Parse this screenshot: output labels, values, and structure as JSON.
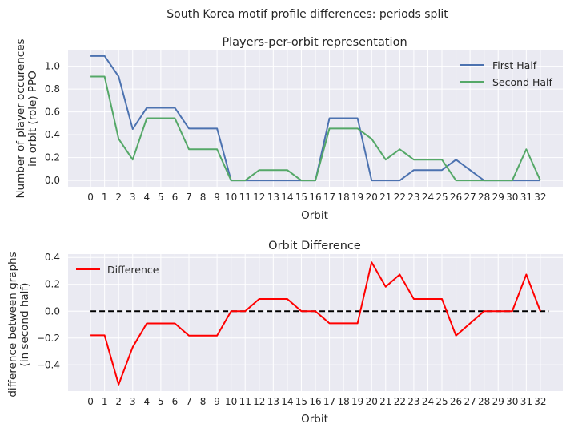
{
  "suptitle": "South Korea motif profile differences: periods split",
  "chart_data": [
    {
      "type": "line",
      "title": "Players-per-orbit representation",
      "xlabel": "Orbit",
      "ylabel_lines": [
        "Number of player occurences",
        "in orbit (role) PPO"
      ],
      "x": [
        0,
        1,
        2,
        3,
        4,
        5,
        6,
        7,
        8,
        9,
        10,
        11,
        12,
        13,
        14,
        15,
        16,
        17,
        18,
        19,
        20,
        21,
        22,
        23,
        24,
        25,
        26,
        27,
        28,
        29,
        30,
        31,
        32
      ],
      "xlim": [
        -1.6,
        33.6
      ],
      "ylim": [
        -0.055,
        1.145
      ],
      "yticks": [
        0.0,
        0.2,
        0.4,
        0.6,
        0.8,
        1.0
      ],
      "ytick_labels": [
        "0.0",
        "0.2",
        "0.4",
        "0.6",
        "0.8",
        "1.0"
      ],
      "legend_position": "upper-right",
      "grid": true,
      "series": [
        {
          "name": "First Half",
          "color": "#4c72b0",
          "values": [
            1.09,
            1.09,
            0.91,
            0.45,
            0.636,
            0.636,
            0.636,
            0.455,
            0.455,
            0.455,
            0,
            0,
            0,
            0,
            0,
            0,
            0,
            0.545,
            0.545,
            0.545,
            0,
            0,
            0,
            0.091,
            0.091,
            0.091,
            0.182,
            0.091,
            0,
            0,
            0,
            0,
            0
          ]
        },
        {
          "name": "Second Half",
          "color": "#55a868",
          "values": [
            0.91,
            0.91,
            0.364,
            0.182,
            0.545,
            0.545,
            0.545,
            0.273,
            0.273,
            0.273,
            0,
            0,
            0.091,
            0.091,
            0.091,
            0,
            0,
            0.455,
            0.455,
            0.455,
            0.364,
            0.182,
            0.273,
            0.182,
            0.182,
            0.182,
            0,
            0,
            0,
            0,
            0,
            0.273,
            0
          ]
        }
      ]
    },
    {
      "type": "line",
      "title": "Orbit Difference",
      "xlabel": "Orbit",
      "ylabel_lines": [
        "difference between graphs",
        "(in second half)"
      ],
      "x": [
        0,
        1,
        2,
        3,
        4,
        5,
        6,
        7,
        8,
        9,
        10,
        11,
        12,
        13,
        14,
        15,
        16,
        17,
        18,
        19,
        20,
        21,
        22,
        23,
        24,
        25,
        26,
        27,
        28,
        29,
        30,
        31,
        32
      ],
      "xlim": [
        -1.6,
        33.6
      ],
      "ylim": [
        -0.595,
        0.425
      ],
      "yticks": [
        -0.4,
        -0.2,
        0.0,
        0.2,
        0.4
      ],
      "ytick_labels": [
        "−0.4",
        "−0.2",
        "0.0",
        "0.2",
        "0.4"
      ],
      "legend_position": "upper-left",
      "grid": true,
      "series": [
        {
          "name": "Difference",
          "color": "#ff0000",
          "values": [
            -0.18,
            -0.18,
            -0.546,
            -0.268,
            -0.091,
            -0.091,
            -0.091,
            -0.182,
            -0.182,
            -0.182,
            0,
            0,
            0.091,
            0.091,
            0.091,
            0,
            0,
            -0.09,
            -0.09,
            -0.09,
            0.364,
            0.182,
            0.273,
            0.091,
            0.091,
            0.091,
            -0.182,
            -0.091,
            0,
            0,
            0,
            0.273,
            0
          ]
        }
      ],
      "reference_line": {
        "y": 0,
        "x_range": [
          0,
          32.6
        ],
        "color": "#000000",
        "style": "dashed"
      }
    }
  ]
}
